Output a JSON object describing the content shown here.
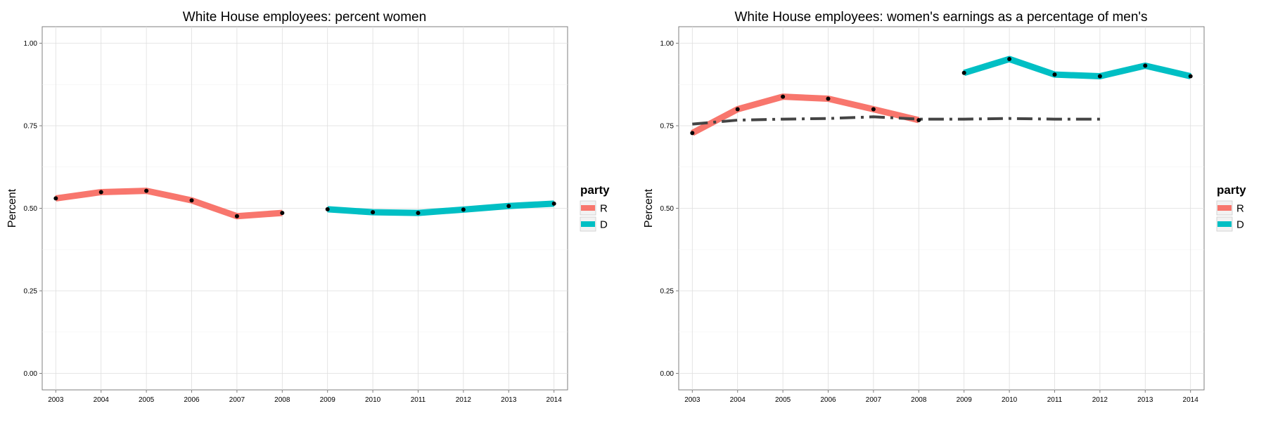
{
  "colors": {
    "R": "#F8766D",
    "D": "#00BFC4",
    "reference": "#444444",
    "point": "#000000"
  },
  "chart_data": [
    {
      "type": "line",
      "title": "White House employees: percent women",
      "xlabel": "",
      "ylabel": "Percent",
      "x": [
        "2003",
        "2004",
        "2005",
        "2006",
        "2007",
        "2008",
        "2009",
        "2010",
        "2011",
        "2012",
        "2013",
        "2014"
      ],
      "ylim": [
        -0.05,
        1.05
      ],
      "yticks": [
        "0.00",
        "0.25",
        "0.50",
        "0.75",
        "1.00"
      ],
      "grid": true,
      "legend": {
        "title": "party",
        "position": "right",
        "entries": [
          "R",
          "D"
        ]
      },
      "series": [
        {
          "name": "R",
          "x": [
            "2003",
            "2004",
            "2005",
            "2006",
            "2007",
            "2008"
          ],
          "values": [
            0.53,
            0.549,
            0.553,
            0.524,
            0.476,
            0.486
          ]
        },
        {
          "name": "D",
          "x": [
            "2009",
            "2010",
            "2011",
            "2012",
            "2013",
            "2014"
          ],
          "values": [
            0.497,
            0.488,
            0.486,
            0.496,
            0.507,
            0.514
          ]
        }
      ]
    },
    {
      "type": "line",
      "title": "White House employees: women's earnings as a percentage of men's",
      "xlabel": "",
      "ylabel": "Percent",
      "x": [
        "2003",
        "2004",
        "2005",
        "2006",
        "2007",
        "2008",
        "2009",
        "2010",
        "2011",
        "2012",
        "2013",
        "2014"
      ],
      "ylim": [
        -0.05,
        1.05
      ],
      "yticks": [
        "0.00",
        "0.25",
        "0.50",
        "0.75",
        "1.00"
      ],
      "grid": true,
      "legend": {
        "title": "party",
        "position": "right",
        "entries": [
          "R",
          "D"
        ]
      },
      "series": [
        {
          "name": "R",
          "x": [
            "2003",
            "2004",
            "2005",
            "2006",
            "2007",
            "2008"
          ],
          "values": [
            0.728,
            0.8,
            0.838,
            0.832,
            0.8,
            0.767
          ]
        },
        {
          "name": "D",
          "x": [
            "2009",
            "2010",
            "2011",
            "2012",
            "2013",
            "2014"
          ],
          "values": [
            0.91,
            0.952,
            0.905,
            0.9,
            0.932,
            0.9
          ]
        }
      ],
      "reference_line": {
        "style": "dashdot",
        "x": [
          "2003",
          "2004",
          "2005",
          "2006",
          "2007",
          "2008",
          "2009",
          "2010",
          "2011",
          "2012"
        ],
        "values": [
          0.755,
          0.767,
          0.77,
          0.772,
          0.777,
          0.77,
          0.77,
          0.772,
          0.77,
          0.77
        ]
      }
    }
  ]
}
